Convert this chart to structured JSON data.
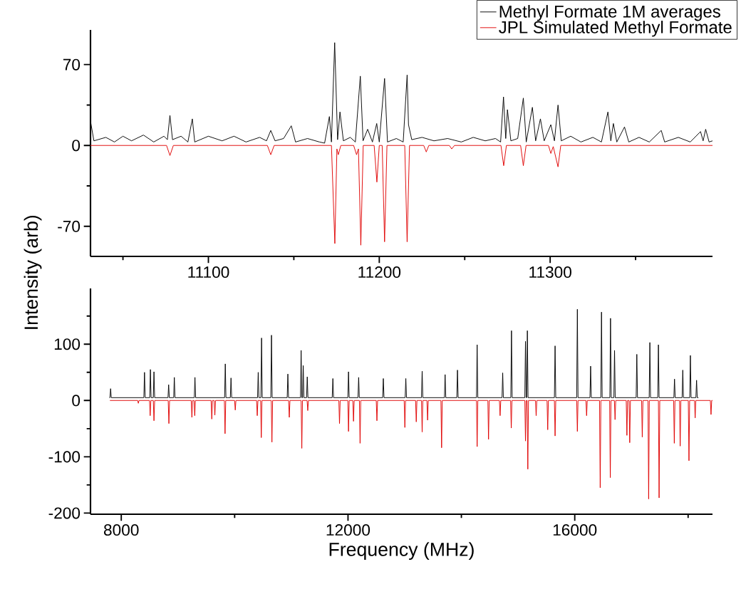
{
  "chart_data": [
    {
      "type": "line",
      "xlim": [
        11031,
        11395
      ],
      "ylim": [
        -96,
        100
      ],
      "legend": "top right",
      "marker": "none",
      "line_style": "solid",
      "xticks": [
        {
          "value": 11050,
          "label": null
        },
        11100,
        {
          "value": 11150,
          "label": null
        },
        11200,
        {
          "value": 11250,
          "label": null
        },
        11300,
        {
          "value": 11350,
          "label": null
        }
      ],
      "yticks": [
        70,
        {
          "value": 35,
          "label": null
        },
        0,
        {
          "value": -35,
          "label": null
        },
        -70
      ],
      "series": [
        {
          "name": "Methyl Formate 1M averages",
          "color": "#000000",
          "x": [
            11031,
            11033,
            11040,
            11045,
            11050,
            11055,
            11062,
            11068,
            11074,
            11076,
            11077.5,
            11079,
            11084,
            11088,
            11090.6,
            11092,
            11100,
            11108,
            11115,
            11122,
            11130,
            11134,
            11136.5,
            11139,
            11144,
            11148.5,
            11151,
            11158,
            11165,
            11168,
            11170.8,
            11172,
            11173.9,
            11175.6,
            11177,
            11179,
            11183,
            11186,
            11188.9,
            11190.5,
            11193.2,
            11196,
            11198.5,
            11200,
            11203.1,
            11204.8,
            11210,
            11214,
            11216.3,
            11217.1,
            11219,
            11225,
            11232,
            11240,
            11248,
            11255,
            11262,
            11268,
            11271,
            11272.7,
            11274,
            11275,
            11277,
            11281,
            11284.3,
            11286,
            11289.6,
            11291.5,
            11294.3,
            11296.5,
            11300.4,
            11302.5,
            11304.6,
            11306.5,
            11312,
            11318,
            11325,
            11330,
            11333.8,
            11335.5,
            11337,
            11339,
            11343.5,
            11346,
            11352,
            11358,
            11365,
            11367,
            11375,
            11382,
            11388,
            11389.5,
            11391,
            11393,
            11395
          ],
          "values": [
            21,
            4,
            7,
            3,
            8,
            4,
            9,
            3,
            8,
            5,
            26,
            5,
            8,
            3,
            23,
            3,
            8,
            4,
            8,
            3,
            7,
            4,
            13,
            4,
            6,
            17,
            3,
            6,
            3,
            2,
            25,
            3,
            89,
            5,
            29,
            4,
            7,
            3,
            60,
            4,
            14,
            3,
            19,
            3,
            58,
            3,
            6,
            3,
            61,
            18,
            5,
            7,
            4,
            6,
            3,
            7,
            4,
            6,
            3,
            42,
            6,
            31,
            4,
            6,
            41,
            3,
            33,
            4,
            23,
            4,
            18,
            4,
            35,
            4,
            8,
            3,
            7,
            3,
            29,
            4,
            19,
            3,
            16,
            3,
            7,
            3,
            13,
            3,
            7,
            3,
            12,
            4,
            14,
            3,
            4
          ]
        },
        {
          "name": "JPL Simulated Methyl Formate",
          "color": "#e00000",
          "x": [
            11031,
            11075.5,
            11077.5,
            11079.5,
            11134.5,
            11136.5,
            11138.5,
            11172,
            11174,
            11175.2,
            11176,
            11177.5,
            11185,
            11186.7,
            11187.8,
            11189.2,
            11190.6,
            11197,
            11198.6,
            11200,
            11201.7,
            11203.1,
            11204.5,
            11214.9,
            11216.3,
            11217.7,
            11226,
            11227.5,
            11229,
            11241,
            11242.4,
            11244,
            11271.2,
            11272.8,
            11274.4,
            11282.7,
            11284.3,
            11285.9,
            11299,
            11300.4,
            11301.8,
            11304.6,
            11306.2,
            11395
          ],
          "values": [
            0,
            0,
            -8.7,
            0,
            0,
            -8,
            0,
            0,
            -84.9,
            -3,
            -8,
            0,
            0,
            -8,
            -3,
            -86.3,
            0,
            0,
            -31.7,
            0,
            0,
            -83.4,
            0,
            0,
            -83.4,
            0,
            0,
            -5.6,
            0,
            0,
            -3,
            0,
            0,
            -17.5,
            0,
            0,
            -17.5,
            0,
            0,
            -6.9,
            -1,
            -18.5,
            0,
            0
          ]
        }
      ]
    },
    {
      "type": "line",
      "xlim": [
        7457,
        18430
      ],
      "ylim": [
        -202,
        199
      ],
      "marker": "none",
      "line_style": "solid",
      "xlabel": "Frequency (MHz)",
      "ylabel": "Intensity (arb)",
      "xticks": [
        8000,
        {
          "value": 10000,
          "label": null
        },
        12000,
        {
          "value": 14000,
          "label": null
        },
        16000,
        {
          "value": 18000,
          "label": null
        }
      ],
      "yticks": [
        {
          "value": 150,
          "label": null
        },
        100,
        {
          "value": 50,
          "label": null
        },
        0,
        {
          "value": -50,
          "label": null
        },
        -100,
        {
          "value": -150,
          "label": null
        },
        -200
      ],
      "series": [
        {
          "color": "#000000",
          "x": [
            7791,
            7800,
            7812,
            7824,
            8398,
            8410,
            8422,
            8502,
            8514,
            8526,
            8565,
            8577,
            8589,
            8824,
            8836,
            8848,
            8924,
            8936,
            8948,
            9288,
            9300,
            9312,
            9823,
            9835,
            9847,
            9924,
            9936,
            9948,
            10404,
            10416,
            10428,
            10463,
            10475,
            10487,
            10638,
            10650,
            10662,
            10927,
            10939,
            10951,
            11161,
            11173,
            11185,
            11198,
            11210,
            11222,
            11269,
            11281,
            11293,
            11721,
            11733,
            11745,
            11997,
            12009,
            12021,
            12176,
            12188,
            12200,
            12611,
            12623,
            12635,
            13008,
            13020,
            13032,
            13296,
            13308,
            13320,
            13701,
            13713,
            13725,
            13919,
            13931,
            13943,
            14266,
            14278,
            14290,
            14717,
            14729,
            14741,
            14872,
            14884,
            14896,
            15119,
            15131,
            15143,
            15152,
            15164,
            15176,
            15641,
            15653,
            15665,
            16034,
            16046,
            16058,
            16268,
            16280,
            16292,
            16460,
            16472,
            16484,
            16619,
            16631,
            16643,
            16690,
            16702,
            16714,
            17083,
            17095,
            17107,
            17313,
            17325,
            17337,
            17464,
            17476,
            17488,
            17748,
            17760,
            17772,
            17894,
            17906,
            17918,
            18028,
            18040,
            18052,
            18137,
            18149,
            18161,
            18182
          ],
          "values": [
            5,
            5,
            21,
            5,
            5,
            50,
            5,
            5,
            55,
            5,
            5,
            51,
            5,
            5,
            28,
            5,
            5,
            41,
            5,
            5,
            41,
            5,
            5,
            65,
            5,
            5,
            40,
            5,
            5,
            50,
            5,
            5,
            111,
            5,
            5,
            116,
            5,
            5,
            47,
            5,
            5,
            89,
            5,
            5,
            62,
            5,
            5,
            42,
            5,
            5,
            39,
            5,
            5,
            51,
            5,
            5,
            41,
            5,
            5,
            39,
            5,
            5,
            39,
            5,
            5,
            52,
            5,
            5,
            46,
            5,
            5,
            54,
            5,
            5,
            99,
            5,
            5,
            49,
            5,
            5,
            124,
            5,
            5,
            105,
            5,
            5,
            124,
            5,
            5,
            97,
            5,
            5,
            162,
            5,
            5,
            61,
            5,
            5,
            157,
            5,
            5,
            146,
            5,
            5,
            89,
            5,
            5,
            82,
            5,
            5,
            103,
            5,
            5,
            99,
            5,
            5,
            38,
            5,
            5,
            54,
            5,
            5,
            80,
            5,
            5,
            36,
            5,
            5
          ]
        },
        {
          "color": "#e00000",
          "x": [
            7800,
            8289,
            8301,
            8313,
            8498,
            8510,
            8522,
            8565,
            8577,
            8589,
            8828,
            8840,
            8852,
            9234,
            9246,
            9258,
            9284,
            9296,
            9308,
            9585,
            9597,
            9609,
            9639,
            9651,
            9663,
            9819,
            9831,
            9843,
            9999,
            10011,
            10023,
            10387,
            10399,
            10411,
            10458,
            10470,
            10482,
            10646,
            10658,
            10670,
            10952,
            10964,
            10976,
            11173,
            11185,
            11197,
            11278,
            11290,
            11302,
            11838,
            11850,
            11862,
            11997,
            12009,
            12021,
            12085,
            12097,
            12109,
            12201,
            12213,
            12225,
            12498,
            12510,
            12522,
            12991,
            13003,
            13015,
            13192,
            13204,
            13216,
            13296,
            13308,
            13320,
            13392,
            13404,
            13416,
            13639,
            13651,
            13663,
            14266,
            14278,
            14290,
            14467,
            14479,
            14491,
            14671,
            14683,
            14695,
            14868,
            14880,
            14892,
            15119,
            15131,
            15143,
            15160,
            15172,
            15184,
            15307,
            15319,
            15331,
            15511,
            15523,
            15535,
            15641,
            15653,
            15665,
            16034,
            16046,
            16058,
            16197,
            16209,
            16221,
            16437,
            16449,
            16461,
            16615,
            16627,
            16639,
            16699,
            16711,
            16723,
            16908,
            16920,
            16932,
            16958,
            16970,
            16982,
            17179,
            17191,
            17203,
            17292,
            17304,
            17316,
            17476,
            17488,
            17500,
            17744,
            17756,
            17768,
            17848,
            17860,
            17872,
            18003,
            18015,
            18027,
            18112,
            18124,
            18136,
            18392,
            18404,
            18416,
            18430
          ],
          "values": [
            0,
            0,
            -5,
            0,
            0,
            -27,
            0,
            0,
            -36,
            0,
            0,
            -41,
            0,
            0,
            -30,
            0,
            0,
            -27,
            0,
            0,
            -33,
            0,
            0,
            -26,
            0,
            0,
            -59,
            0,
            0,
            -17,
            0,
            0,
            -27,
            0,
            0,
            -66,
            0,
            0,
            -74,
            0,
            0,
            -30,
            0,
            0,
            -85,
            0,
            0,
            -18,
            0,
            0,
            -41,
            0,
            0,
            -55,
            0,
            0,
            -37,
            0,
            0,
            -76,
            0,
            0,
            -36,
            0,
            0,
            -48,
            0,
            0,
            -38,
            0,
            0,
            -56,
            0,
            0,
            -35,
            0,
            0,
            -84,
            0,
            0,
            -82,
            0,
            0,
            -69,
            0,
            0,
            -27,
            0,
            0,
            -49,
            0,
            0,
            -72,
            0,
            0,
            -122,
            0,
            0,
            -27,
            0,
            0,
            -52,
            0,
            0,
            -63,
            0,
            0,
            -55,
            0,
            0,
            -27,
            0,
            0,
            -155,
            0,
            0,
            -137,
            0,
            0,
            -34,
            0,
            0,
            -62,
            0,
            0,
            -75,
            0,
            0,
            -65,
            0,
            0,
            -175,
            0,
            0,
            -173,
            0,
            0,
            -76,
            0,
            0,
            -81,
            0,
            0,
            -107,
            0,
            0,
            -31,
            0,
            0,
            -25,
            0,
            0
          ]
        }
      ]
    }
  ]
}
